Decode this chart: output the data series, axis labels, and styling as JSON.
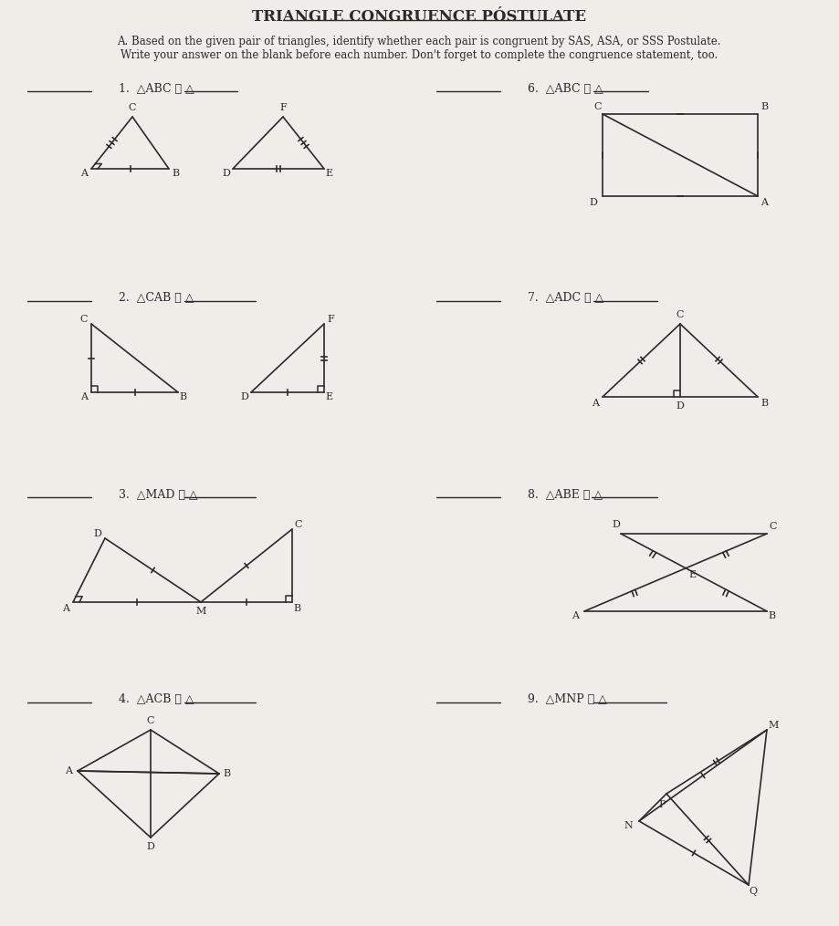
{
  "title": "TRIANGLE CONGRUENCE PÓSTULATE",
  "instruction_line1": "A. Based on the given pair of triangles, identify whether each pair is congruent by SAS, ASA, or SSS Postulate.",
  "instruction_line2": "Write your answer on the blank before each number. Don't forget to complete the congruence statement, too.",
  "bg_color": "#f0ede8",
  "text_color": "#2a2a2a",
  "line_color": "#2a2a2a"
}
